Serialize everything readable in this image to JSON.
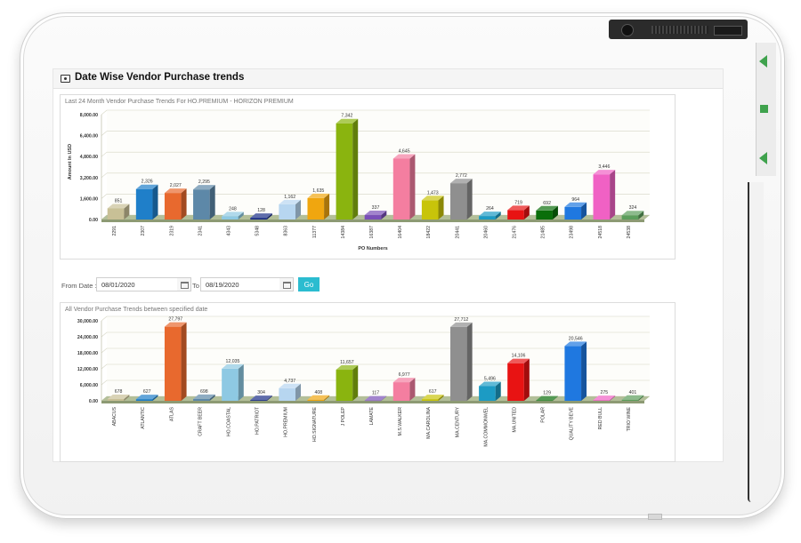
{
  "header": {
    "title": "Date Wise Vendor Purchase trends"
  },
  "filter": {
    "from_label": "From Date :",
    "from_value": "08/01/2020",
    "to_label": "To",
    "to_value": "08/19/2020",
    "go_label": "Go"
  },
  "colors": {
    "accent": "#2bbcd0",
    "device_indicator": "#3fa24d"
  },
  "chart_data": [
    {
      "type": "bar",
      "title": "Last 24 Month Vendor Purchase Trends For HO.PREMIUM - HORIZON PREMIUM",
      "xlabel": "PO Numbers",
      "ylabel": "Amount In USD",
      "ylim": [
        0,
        8000
      ],
      "yticks": [
        "8,000.00",
        "6,400.00",
        "4,800.00",
        "3,200.00",
        "1,600.00",
        "0.00"
      ],
      "grid": true,
      "categories": [
        "2291",
        "2307",
        "2319",
        "2341",
        "4343",
        "5348",
        "8363",
        "11377",
        "14384",
        "16387",
        "16404",
        "18422",
        "20441",
        "20460",
        "21476",
        "21485",
        "23498",
        "24518",
        "24538"
      ],
      "values": [
        851,
        2326,
        2027,
        2295,
        248,
        128,
        1162,
        1635,
        7342,
        337,
        4645,
        1473,
        2772,
        264,
        719,
        692,
        964,
        3446,
        324
      ],
      "labels": [
        "851",
        "2,326",
        "2,027",
        "2,295",
        "248",
        "128",
        "1,162",
        "1,635",
        "7,342",
        "337",
        "4,645",
        "1,473",
        "2,772",
        "264",
        "719",
        "692",
        "964",
        "3,446",
        "324"
      ],
      "bar_colors": [
        "#c8c096",
        "#1f7fc9",
        "#e8692e",
        "#5d88a8",
        "#8ec9e3",
        "#1b2e87",
        "#b7d6f0",
        "#f0a60f",
        "#8ab40f",
        "#7a4fb8",
        "#f47ea0",
        "#c8c40a",
        "#8f8f8f",
        "#1c9bc4",
        "#e81313",
        "#0a6e0a",
        "#1f78e0",
        "#f061c4",
        "#5c9e5c"
      ]
    },
    {
      "type": "bar",
      "title": "All Vendor Purchase Trends between specified date",
      "xlabel": "",
      "ylabel": "",
      "ylim": [
        0,
        30000
      ],
      "yticks": [
        "30,000.00",
        "24,000.00",
        "18,000.00",
        "12,000.00",
        "6,000.00",
        "0.00"
      ],
      "grid": true,
      "categories": [
        "ABACUS",
        "ATLANTIC",
        "ATLAS",
        "CRAFT BEER",
        "HO.COASTAL",
        "HO.PATRIOT",
        "HO.PREMIUM",
        "HO.SIGNATURE",
        "J POLEP",
        "LAMATE",
        "M.S.WALKER",
        "MA.CAROLINA",
        "MA.CENTURY",
        "MA.COMMONWEL",
        "MA.UNITED",
        "POLAR",
        "QUALITY BEVE",
        "RED BULL",
        "TRIO WINE"
      ],
      "values": [
        678,
        627,
        27797,
        698,
        12035,
        304,
        4737,
        408,
        11657,
        117,
        6977,
        617,
        27712,
        5496,
        14106,
        129,
        20546,
        275,
        401
      ],
      "labels": [
        "678",
        "627",
        "27,797",
        "698",
        "12,035",
        "304",
        "4,737",
        "408",
        "11,657",
        "117",
        "6,977",
        "617",
        "27,712",
        "5,496",
        "14,106",
        "129",
        "20,546",
        "275",
        "401"
      ],
      "bar_colors": [
        "#c8c096",
        "#1f7fc9",
        "#e8692e",
        "#5d88a8",
        "#8ec9e3",
        "#1b2e87",
        "#b7d6f0",
        "#f0a60f",
        "#8ab40f",
        "#7a4fb8",
        "#f47ea0",
        "#c8c40a",
        "#8f8f8f",
        "#1c9bc4",
        "#e81313",
        "#0a6e0a",
        "#1f78e0",
        "#f061c4",
        "#5c9e5c"
      ]
    }
  ]
}
